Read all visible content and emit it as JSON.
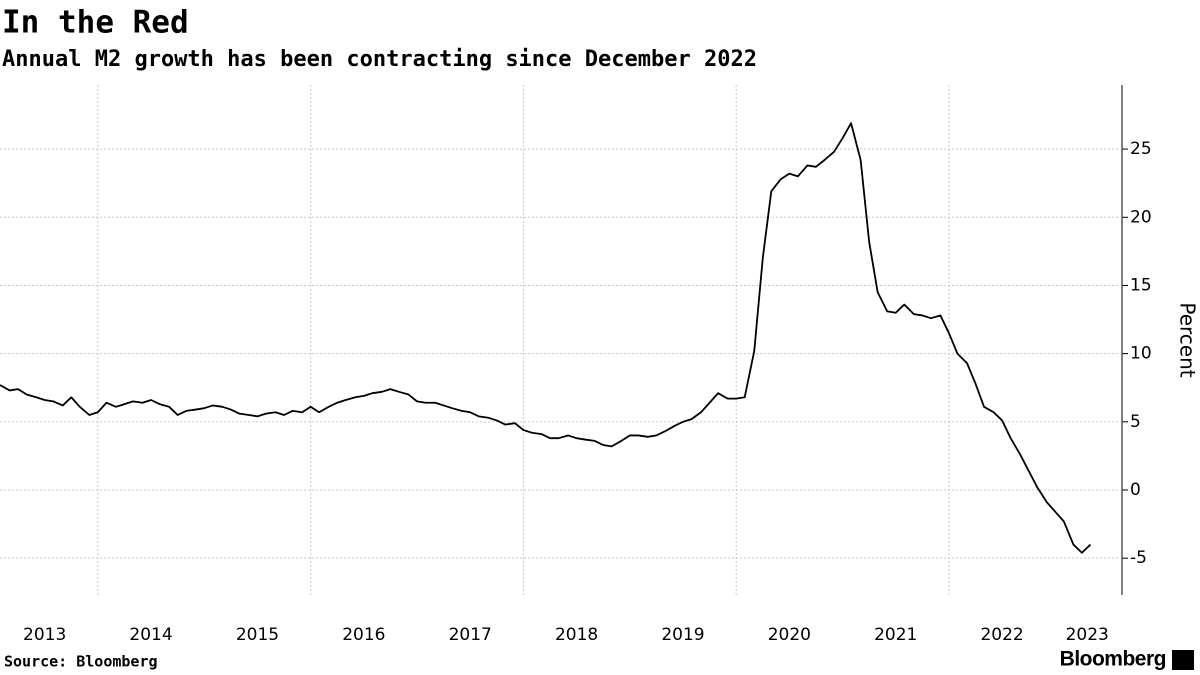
{
  "chart_data": {
    "type": "line",
    "title": "In the Red",
    "subtitle": "Annual M2 growth has been contracting since December 2022",
    "y_label": "Percent",
    "source": "Source: Bloomberg",
    "logo": "Bloomberg",
    "x": [
      2013.08,
      2013.17,
      2013.25,
      2013.33,
      2013.42,
      2013.5,
      2013.58,
      2013.67,
      2013.75,
      2013.83,
      2013.92,
      2014,
      2014.08,
      2014.17,
      2014.25,
      2014.33,
      2014.42,
      2014.5,
      2014.58,
      2014.67,
      2014.75,
      2014.83,
      2014.92,
      2015,
      2015.08,
      2015.17,
      2015.25,
      2015.33,
      2015.42,
      2015.5,
      2015.58,
      2015.67,
      2015.75,
      2015.83,
      2015.92,
      2016,
      2016.08,
      2016.17,
      2016.25,
      2016.33,
      2016.42,
      2016.5,
      2016.58,
      2016.67,
      2016.75,
      2016.83,
      2016.92,
      2017,
      2017.08,
      2017.17,
      2017.25,
      2017.33,
      2017.42,
      2017.5,
      2017.58,
      2017.67,
      2017.75,
      2017.83,
      2017.92,
      2018,
      2018.08,
      2018.17,
      2018.25,
      2018.33,
      2018.42,
      2018.5,
      2018.58,
      2018.67,
      2018.75,
      2018.83,
      2018.92,
      2019,
      2019.08,
      2019.17,
      2019.25,
      2019.33,
      2019.42,
      2019.5,
      2019.58,
      2019.67,
      2019.75,
      2019.83,
      2019.92,
      2020,
      2020.08,
      2020.17,
      2020.25,
      2020.33,
      2020.42,
      2020.5,
      2020.58,
      2020.67,
      2020.75,
      2020.83,
      2020.92,
      2021,
      2021.08,
      2021.17,
      2021.25,
      2021.33,
      2021.42,
      2021.5,
      2021.58,
      2021.67,
      2021.75,
      2021.83,
      2021.92,
      2022,
      2022.08,
      2022.17,
      2022.25,
      2022.33,
      2022.42,
      2022.5,
      2022.58,
      2022.67,
      2022.75,
      2022.83,
      2022.92,
      2023,
      2023.08,
      2023.17,
      2023.25,
      2023.33
    ],
    "series": [
      {
        "color": "#000000",
        "values": [
          7.7,
          7.3,
          7.4,
          7.0,
          6.8,
          6.6,
          6.5,
          6.2,
          6.8,
          6.1,
          5.5,
          5.7,
          6.4,
          6.1,
          6.3,
          6.5,
          6.4,
          6.6,
          6.3,
          6.1,
          5.5,
          5.8,
          5.9,
          6.0,
          6.2,
          6.1,
          5.9,
          5.6,
          5.5,
          5.4,
          5.6,
          5.7,
          5.5,
          5.8,
          5.7,
          6.1,
          5.7,
          6.1,
          6.4,
          6.6,
          6.8,
          6.9,
          7.1,
          7.2,
          7.4,
          7.2,
          7.0,
          6.5,
          6.4,
          6.4,
          6.2,
          6.0,
          5.8,
          5.7,
          5.4,
          5.3,
          5.1,
          4.8,
          4.9,
          4.4,
          4.2,
          4.1,
          3.8,
          3.8,
          4.0,
          3.8,
          3.7,
          3.6,
          3.3,
          3.2,
          3.6,
          4.0,
          4.0,
          3.9,
          4.0,
          4.3,
          4.7,
          5.0,
          5.2,
          5.7,
          6.4,
          7.1,
          6.7,
          6.7,
          6.8,
          10.2,
          17.0,
          21.9,
          22.8,
          23.2,
          23.0,
          23.8,
          23.7,
          24.2,
          24.8,
          25.8,
          26.9,
          24.2,
          18.2,
          14.5,
          13.1,
          13.0,
          13.6,
          12.9,
          12.8,
          12.6,
          12.8,
          11.5,
          10.0,
          9.3,
          7.8,
          6.1,
          5.7,
          5.1,
          3.8,
          2.6,
          1.4,
          0.2,
          -0.9,
          -1.6,
          -2.3,
          -4.0,
          -4.6,
          -4.0
        ]
      }
    ],
    "xlim": [
      2013.08,
      2023.42
    ],
    "xticks": [
      {
        "value": 2013.5,
        "label": "2013"
      },
      {
        "value": 2014.5,
        "label": "2014"
      },
      {
        "value": 2015.5,
        "label": "2015"
      },
      {
        "value": 2016.5,
        "label": "2016"
      },
      {
        "value": 2017.5,
        "label": "2017"
      },
      {
        "value": 2018.5,
        "label": "2018"
      },
      {
        "value": 2019.5,
        "label": "2019"
      },
      {
        "value": 2020.5,
        "label": "2020"
      },
      {
        "value": 2021.5,
        "label": "2021"
      },
      {
        "value": 2022.5,
        "label": "2022"
      },
      {
        "value": 2023.3,
        "label": "2023"
      }
    ],
    "xgrid": [
      2014,
      2016,
      2018,
      2020,
      2022
    ],
    "ylim": [
      -7.7,
      29.7
    ],
    "yticks": [
      -5,
      0,
      5,
      10,
      15,
      20,
      25
    ],
    "grid": true
  }
}
